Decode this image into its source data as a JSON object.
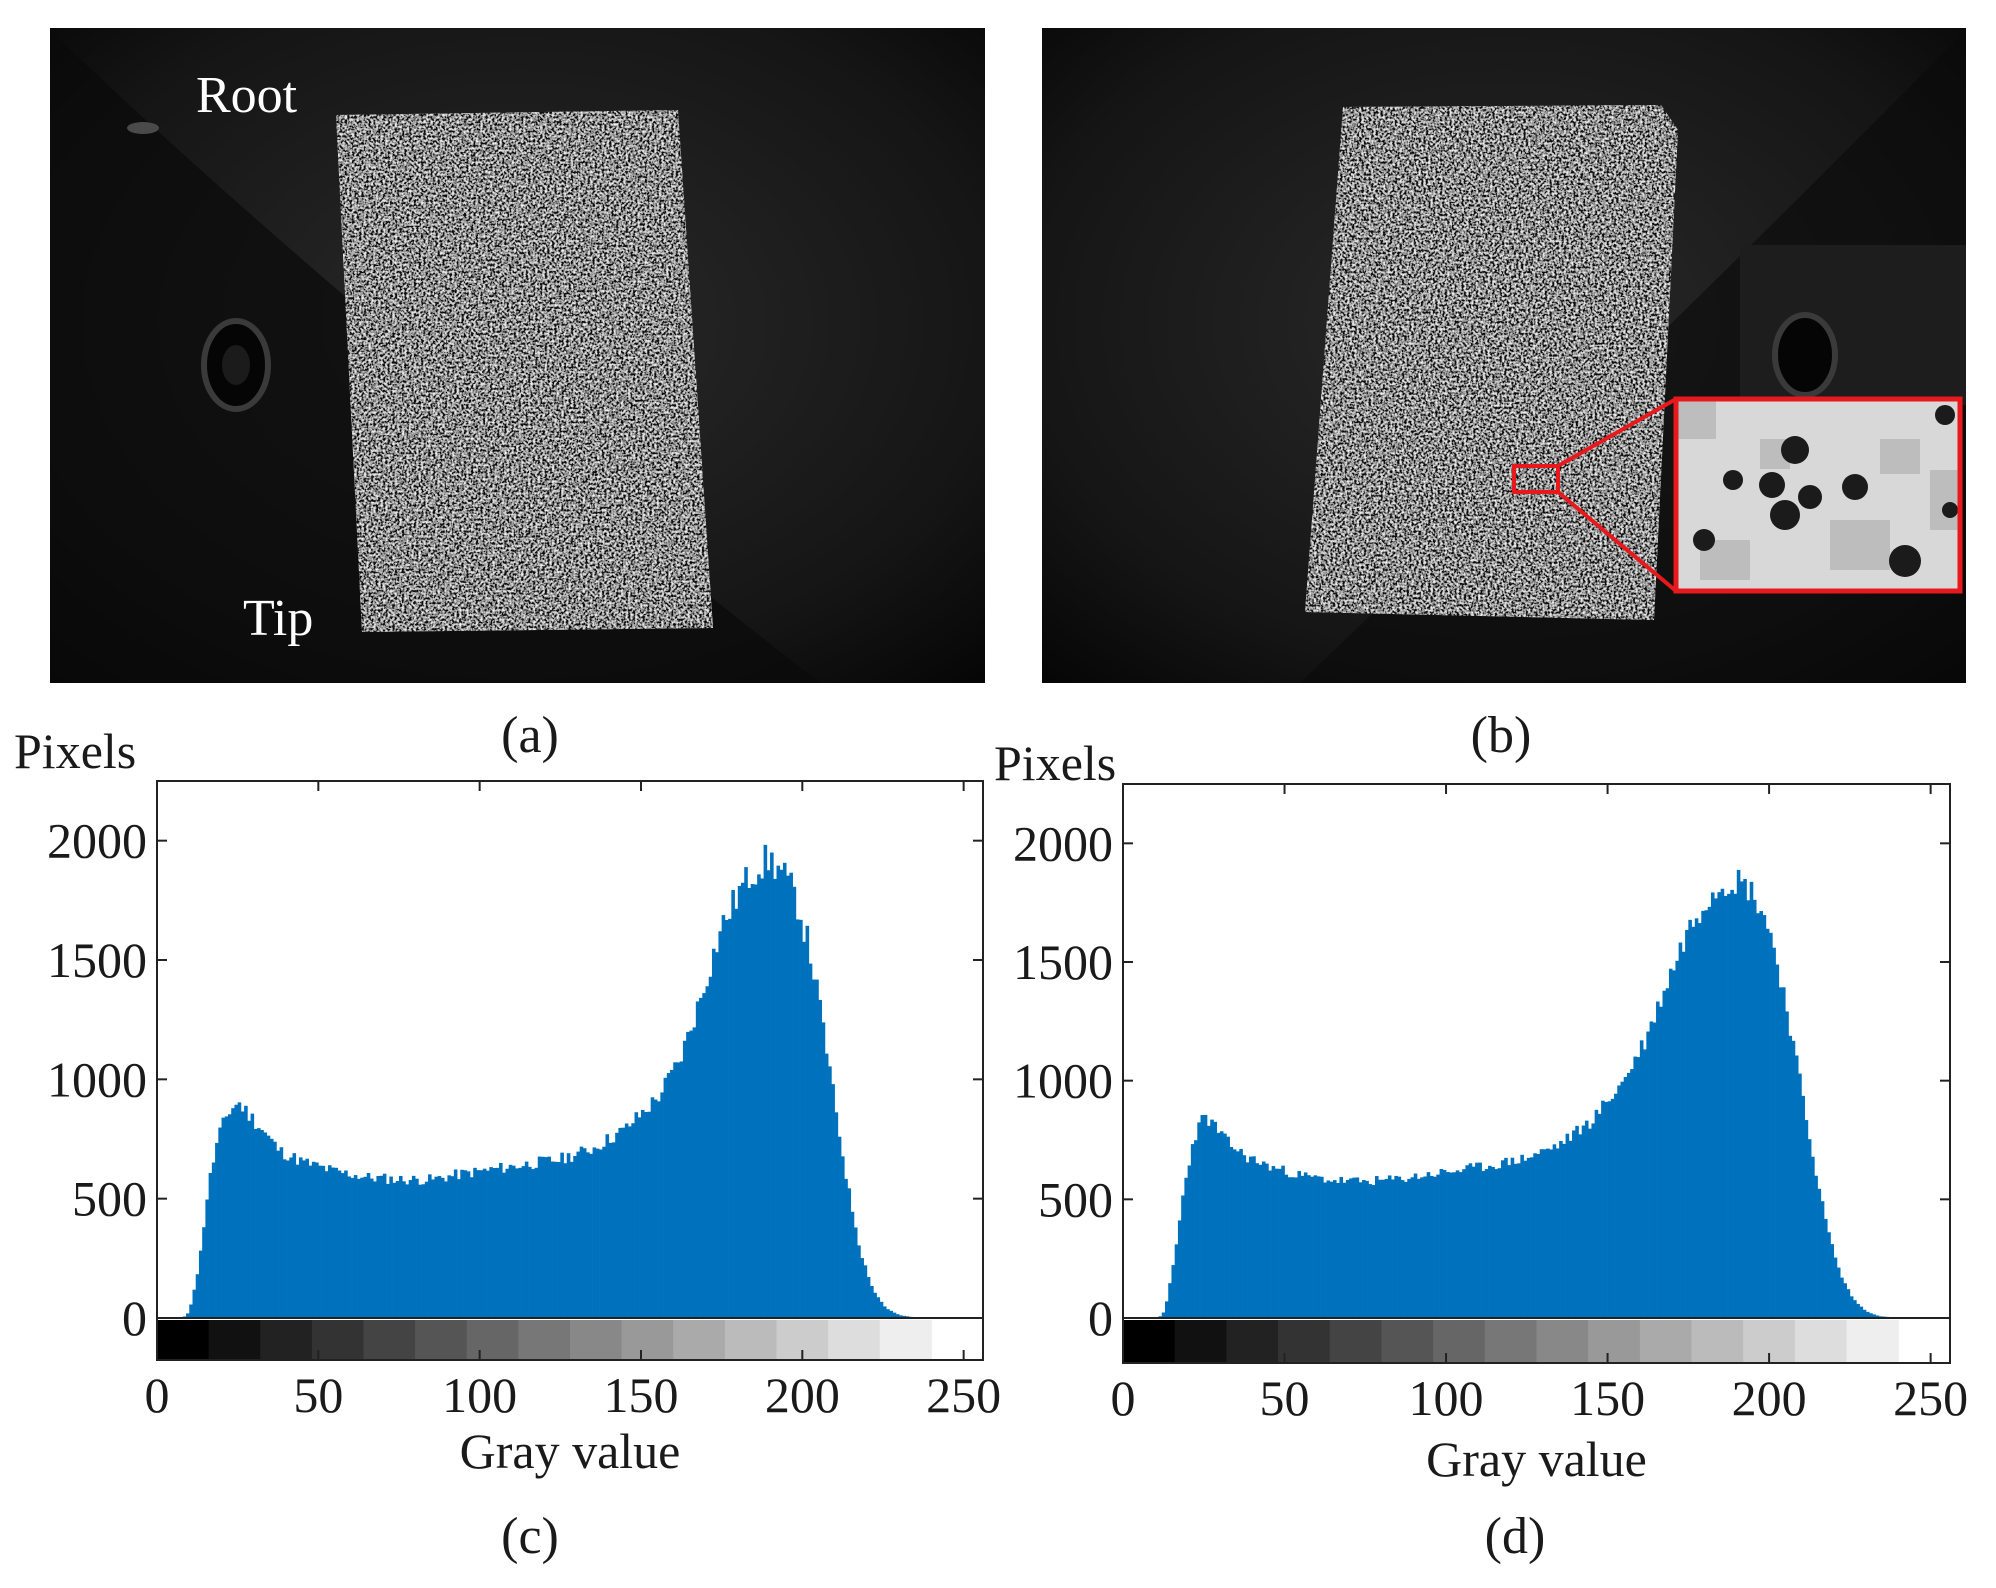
{
  "panels": {
    "a": {
      "caption": "(a)",
      "labels": {
        "root": "Root",
        "tip": "Tip"
      }
    },
    "b": {
      "caption": "(b)"
    },
    "c": {
      "caption": "(c)"
    },
    "d": {
      "caption": "(d)"
    }
  },
  "colors": {
    "bar": "#0072bd",
    "zoom_box": "#e8191c",
    "photo_bg": "#0e0e0e"
  },
  "chart_data": [
    {
      "id": "c",
      "type": "bar",
      "title": "",
      "xlabel": "Gray value",
      "ylabel": "Pixels",
      "xlim": [
        0,
        256
      ],
      "ylim": [
        0,
        2250
      ],
      "xticks": [
        0,
        50,
        100,
        150,
        200,
        250
      ],
      "yticks": [
        0,
        500,
        1000,
        1500,
        2000
      ],
      "bin_width": 1,
      "anchors": [
        [
          0,
          0
        ],
        [
          8,
          0
        ],
        [
          10,
          25
        ],
        [
          13,
          220
        ],
        [
          16,
          560
        ],
        [
          19,
          760
        ],
        [
          22,
          860
        ],
        [
          25,
          905
        ],
        [
          28,
          860
        ],
        [
          32,
          800
        ],
        [
          38,
          700
        ],
        [
          45,
          655
        ],
        [
          55,
          615
        ],
        [
          65,
          590
        ],
        [
          75,
          580
        ],
        [
          85,
          580
        ],
        [
          95,
          605
        ],
        [
          105,
          625
        ],
        [
          115,
          645
        ],
        [
          125,
          665
        ],
        [
          135,
          710
        ],
        [
          145,
          790
        ],
        [
          155,
          920
        ],
        [
          162,
          1080
        ],
        [
          168,
          1320
        ],
        [
          175,
          1640
        ],
        [
          181,
          1800
        ],
        [
          186,
          1895
        ],
        [
          190,
          1920
        ],
        [
          194,
          1860
        ],
        [
          198,
          1760
        ],
        [
          202,
          1560
        ],
        [
          206,
          1260
        ],
        [
          210,
          900
        ],
        [
          214,
          560
        ],
        [
          218,
          280
        ],
        [
          222,
          115
        ],
        [
          226,
          40
        ],
        [
          230,
          12
        ],
        [
          234,
          4
        ],
        [
          240,
          0
        ],
        [
          255,
          0
        ]
      ],
      "ripple": 0.04,
      "seed": 11
    },
    {
      "id": "d",
      "type": "bar",
      "title": "",
      "xlabel": "Gray value",
      "ylabel": "Pixels",
      "xlim": [
        0,
        256
      ],
      "ylim": [
        0,
        2250
      ],
      "xticks": [
        0,
        50,
        100,
        150,
        200,
        250
      ],
      "yticks": [
        0,
        500,
        1000,
        1500,
        2000
      ],
      "bin_width": 1,
      "anchors": [
        [
          0,
          0
        ],
        [
          11,
          0
        ],
        [
          13,
          30
        ],
        [
          16,
          260
        ],
        [
          19,
          560
        ],
        [
          22,
          760
        ],
        [
          25,
          850
        ],
        [
          28,
          815
        ],
        [
          32,
          745
        ],
        [
          38,
          680
        ],
        [
          45,
          640
        ],
        [
          55,
          600
        ],
        [
          65,
          580
        ],
        [
          75,
          575
        ],
        [
          85,
          585
        ],
        [
          95,
          605
        ],
        [
          105,
          625
        ],
        [
          115,
          645
        ],
        [
          125,
          675
        ],
        [
          135,
          730
        ],
        [
          145,
          830
        ],
        [
          155,
          1000
        ],
        [
          162,
          1180
        ],
        [
          168,
          1400
        ],
        [
          175,
          1640
        ],
        [
          181,
          1780
        ],
        [
          186,
          1840
        ],
        [
          190,
          1845
        ],
        [
          194,
          1810
        ],
        [
          198,
          1720
        ],
        [
          202,
          1540
        ],
        [
          206,
          1270
        ],
        [
          210,
          960
        ],
        [
          214,
          650
        ],
        [
          218,
          380
        ],
        [
          222,
          185
        ],
        [
          226,
          80
        ],
        [
          230,
          28
        ],
        [
          234,
          8
        ],
        [
          240,
          0
        ],
        [
          255,
          0
        ]
      ],
      "ripple": 0.035,
      "seed": 23
    }
  ]
}
